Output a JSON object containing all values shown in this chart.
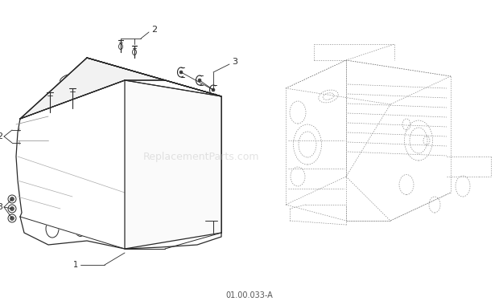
{
  "figure_code": "01.00.033-A",
  "background_color": "#ffffff",
  "line_color": "#2a2a2a",
  "dash_color": "#555555",
  "watermark_text": "ReplacementParts.com",
  "watermark_color": "#cccccc",
  "watermark_fontsize": 9,
  "figure_code_fontsize": 7,
  "label_fontsize": 7,
  "figsize": [
    6.2,
    3.8
  ],
  "dpi": 100
}
